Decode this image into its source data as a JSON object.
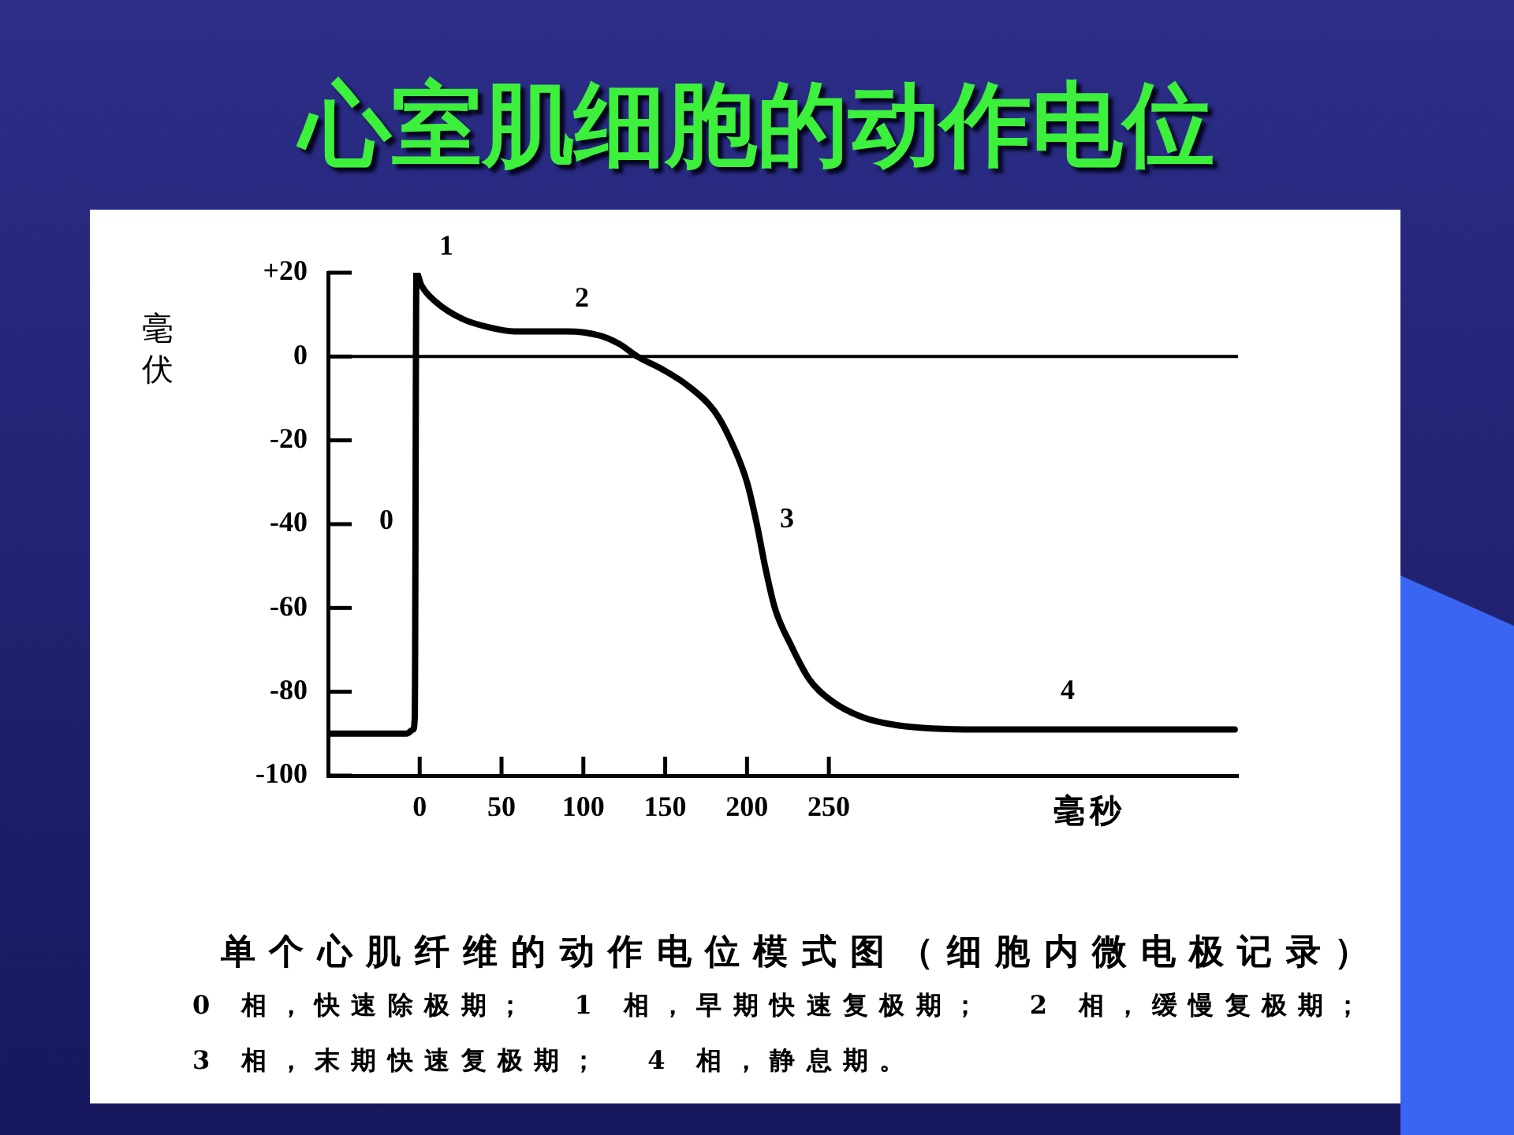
{
  "chart_data": {
    "type": "line",
    "title": "心室肌细胞的动作电位",
    "xlabel": "毫秒",
    "ylabel": "毫伏",
    "x": [
      -56,
      -20,
      -8,
      -4,
      -3,
      -2,
      1,
      10,
      26,
      42,
      58,
      90,
      110,
      122,
      133,
      148,
      164,
      180,
      190,
      200,
      206,
      211,
      217,
      227,
      238,
      251,
      270,
      292,
      341,
      420,
      498
    ],
    "series": [
      {
        "color": "#000000",
        "values": [
          -90,
          -90,
          -90,
          -89,
          -86,
          20,
          17,
          13,
          9,
          7,
          6,
          6,
          5,
          3,
          0,
          -3,
          -7,
          -13,
          -20,
          -30,
          -40,
          -50,
          -60,
          -69,
          -77,
          -82,
          -86,
          -88,
          -89,
          -89,
          -89
        ]
      }
    ],
    "xlim": [
      -56,
      500
    ],
    "xticks": [
      0,
      50,
      100,
      150,
      200,
      250
    ],
    "ylim": [
      -100,
      20
    ],
    "yticks": [
      {
        "value": 20,
        "label": "+20"
      },
      0,
      -20,
      -40,
      -60,
      -80,
      -100
    ],
    "ref_lines": [
      {
        "axis": "y",
        "value": 0,
        "color": "#000000"
      }
    ],
    "marker": "none",
    "line_style": "solid",
    "annotations": [
      "0",
      "1",
      "2",
      "3",
      "4",
      "单个心肌纤维的动作电位模式图（细胞内微电极记录）",
      "0 相，快速除极期；  1 相，早期快速复极期；  2 相，缓慢复极期；",
      "3 相，末期快速复极期；  4 相，静息期。"
    ]
  }
}
